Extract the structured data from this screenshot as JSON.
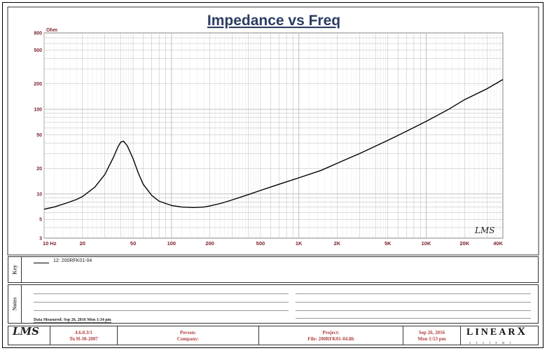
{
  "chart_data": {
    "type": "line",
    "title": "Impedance vs Freq",
    "ylabel": "Ohm",
    "xlabel": "",
    "x_scale": "log",
    "y_scale": "log",
    "xlim": [
      10,
      40000
    ],
    "ylim": [
      3,
      800
    ],
    "x_ticks": [
      {
        "v": 10,
        "label": "10  Hz"
      },
      {
        "v": 20,
        "label": "20"
      },
      {
        "v": 50,
        "label": "50"
      },
      {
        "v": 100,
        "label": "100"
      },
      {
        "v": 200,
        "label": "200"
      },
      {
        "v": 500,
        "label": "500"
      },
      {
        "v": 1000,
        "label": "1K"
      },
      {
        "v": 2000,
        "label": "2K"
      },
      {
        "v": 5000,
        "label": "5K"
      },
      {
        "v": 10000,
        "label": "10K"
      },
      {
        "v": 20000,
        "label": "20K"
      },
      {
        "v": 40000,
        "label": "40K"
      }
    ],
    "y_ticks": [
      {
        "v": 3,
        "label": "3"
      },
      {
        "v": 5,
        "label": "5"
      },
      {
        "v": 10,
        "label": "10"
      },
      {
        "v": 20,
        "label": "20"
      },
      {
        "v": 50,
        "label": "50"
      },
      {
        "v": 100,
        "label": "100"
      },
      {
        "v": 200,
        "label": "200"
      },
      {
        "v": 500,
        "label": "500"
      },
      {
        "v": 800,
        "label": "800"
      }
    ],
    "grid": true,
    "series": [
      {
        "name": "12: 200RFK01-04",
        "color": "#000000",
        "x": [
          10,
          12,
          15,
          18,
          20,
          25,
          30,
          35,
          38,
          40,
          42,
          45,
          50,
          55,
          60,
          70,
          80,
          100,
          120,
          150,
          180,
          200,
          250,
          300,
          400,
          500,
          700,
          1000,
          1500,
          2000,
          3000,
          5000,
          7000,
          10000,
          15000,
          20000,
          30000,
          40000
        ],
        "values": [
          6.6,
          7.0,
          7.8,
          8.6,
          9.3,
          12.0,
          17.0,
          27.0,
          36.0,
          41.0,
          42.0,
          37.0,
          26.0,
          17.5,
          13.0,
          9.6,
          8.2,
          7.3,
          7.0,
          6.9,
          7.0,
          7.2,
          7.8,
          8.5,
          9.8,
          11.0,
          13.0,
          15.5,
          19.0,
          23.0,
          30.0,
          43.0,
          55.0,
          72.0,
          100.0,
          130.0,
          175.0,
          225.0
        ]
      }
    ]
  },
  "watermark": "LMS",
  "key": {
    "label": "Key",
    "entry": "12: 200RFK01-04"
  },
  "notes": {
    "label": "Notes",
    "date_measured": "Data Measured: Sep 26, 2016  Mon  1:34 pm"
  },
  "footer": {
    "logo": "LMS",
    "version": "4.6.0.3/1",
    "version_date": "Tu H-30-2007",
    "person_label": "Person:",
    "company_label": "Company:",
    "project_label": "Project:",
    "file_label": "File: 200RFK01-04.lib",
    "date": "Sep 26, 2016",
    "time": "Mon  1:53 pm",
    "brand": "LINEAR",
    "brand_x": "X",
    "brand_sub": "S Y S T E M S"
  },
  "colors": {
    "title": "#2c3d63",
    "tick_label": "#7a1f2b",
    "grid": "#b8b8b8",
    "plot_bg": "#ffffff"
  }
}
